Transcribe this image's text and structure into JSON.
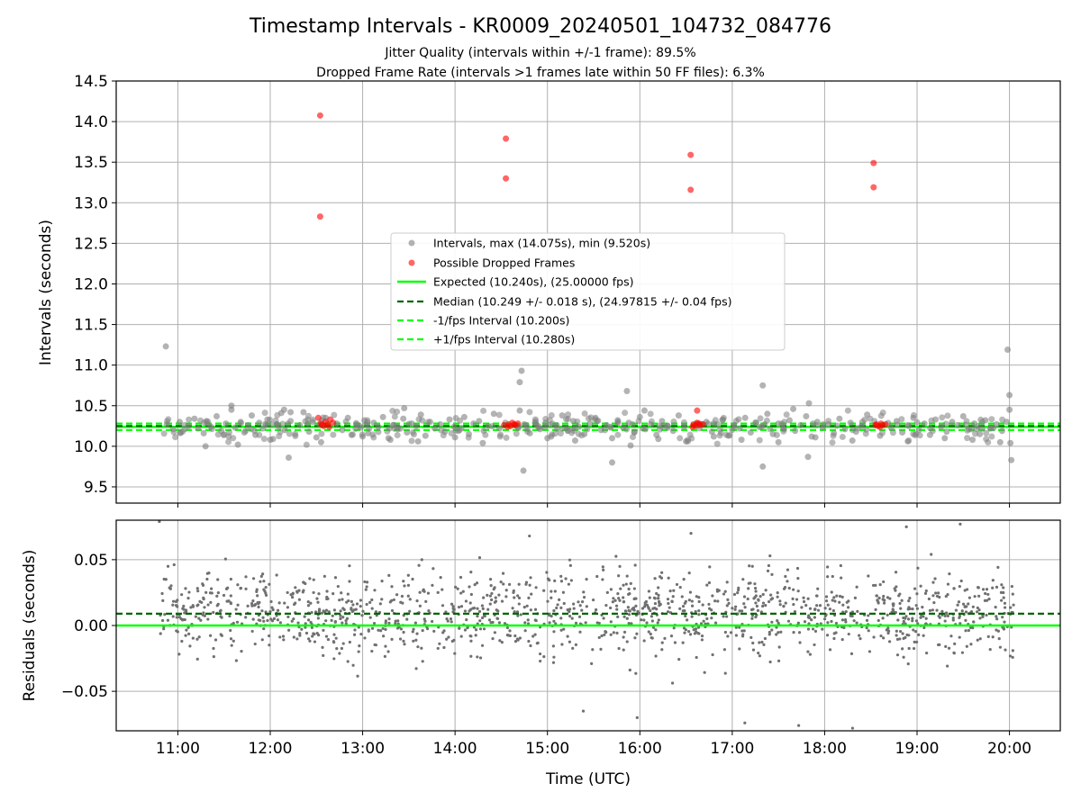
{
  "chart_data": [
    {
      "type": "scatter",
      "title": "Timestamp Intervals - KR0009_20240501_104732_084776",
      "subtitle_lines": [
        "Jitter Quality (intervals within +/-1 frame): 89.5%",
        "Dropped Frame Rate (intervals >1 frames late within 50 FF files): 6.3%"
      ],
      "ylabel": "Intervals (seconds)",
      "xlim": [
        10.333,
        20.55
      ],
      "ylim": [
        9.3,
        14.5
      ],
      "y_ticks": [
        9.5,
        10.0,
        10.5,
        11.0,
        11.5,
        12.0,
        12.5,
        13.0,
        13.5,
        14.0,
        14.5
      ],
      "y_tick_labels": [
        "9.5",
        "10.0",
        "10.5",
        "11.0",
        "11.5",
        "12.0",
        "12.5",
        "13.0",
        "13.5",
        "14.0",
        "14.5"
      ],
      "grid": true,
      "legend_placement": "center",
      "reference_lines": {
        "expected": 10.24,
        "median": 10.249,
        "minus_interval": 10.2,
        "plus_interval": 10.28
      },
      "series": [
        {
          "name": "Intervals, max (14.075s), min (9.520s)",
          "color": "#808080",
          "marker": "circle",
          "x_hours_utc": [
            10.88,
            10.95,
            11.02,
            11.05,
            11.12,
            11.18,
            11.22,
            11.28,
            11.31,
            11.36,
            11.42,
            11.47,
            11.52,
            11.55,
            11.58,
            11.62,
            11.68,
            11.72,
            11.76,
            11.8,
            11.84,
            11.88,
            11.92,
            11.97,
            12.03,
            12.07,
            12.12,
            12.16,
            12.22,
            12.27,
            12.32,
            12.36,
            12.42,
            12.46,
            12.5,
            12.72,
            12.78,
            12.84,
            12.88,
            12.93,
            12.98,
            13.02,
            13.06,
            13.12,
            13.17,
            13.22,
            13.28,
            13.33,
            13.38,
            13.44,
            13.48,
            13.53,
            13.58,
            13.63,
            13.68,
            13.73,
            13.78,
            13.84,
            13.89,
            13.94,
            13.99,
            14.05,
            14.1,
            14.15,
            14.2,
            14.26,
            14.31,
            14.36,
            14.42,
            14.48,
            14.75,
            14.81,
            14.87,
            14.92,
            14.98,
            15.04,
            15.1,
            15.16,
            15.22,
            15.28,
            15.34,
            15.4,
            15.46,
            15.52,
            15.58,
            15.64,
            15.7,
            15.76,
            15.82,
            15.88,
            15.94,
            16.0,
            16.06,
            16.12,
            16.18,
            16.24,
            16.3,
            16.36,
            16.42,
            16.48,
            16.72,
            16.78,
            16.84,
            16.9,
            16.96,
            17.02,
            17.08,
            17.14,
            17.2,
            17.26,
            17.32,
            17.38,
            17.44,
            17.5,
            17.56,
            17.62,
            17.68,
            17.74,
            17.8,
            17.86,
            17.92,
            17.98,
            18.04,
            18.1,
            18.16,
            18.22,
            18.28,
            18.34,
            18.4,
            18.46,
            18.72,
            18.78,
            18.84,
            18.9,
            18.96,
            19.02,
            19.08,
            19.14,
            19.2,
            19.26,
            19.32,
            19.38,
            19.44,
            19.5,
            19.56,
            19.62,
            19.68,
            19.74,
            19.8,
            19.86,
            19.92,
            19.97,
            10.87,
            11.58,
            12.22,
            12.6,
            14.72,
            14.7,
            14.7,
            14.74,
            15.86,
            15.9,
            17.33,
            17.33,
            17.83,
            17.82,
            19.98,
            20.0,
            20.0,
            20.01,
            20.02,
            11.3,
            11.65,
            12.0,
            12.2,
            12.55,
            13.0,
            13.3,
            13.6,
            14.0,
            14.3,
            15.0,
            15.3,
            15.7,
            16.2,
            16.5,
            16.8,
            17.1,
            17.5,
            17.9,
            18.3,
            18.6,
            18.9,
            19.3,
            19.6,
            19.9,
            12.15,
            13.45,
            16.05,
            17.66
          ],
          "y_intervals_s": [
            10.27,
            10.21,
            10.3,
            10.18,
            10.25,
            10.34,
            10.22,
            10.16,
            10.31,
            10.24,
            10.37,
            10.19,
            10.28,
            10.12,
            10.45,
            10.23,
            10.3,
            10.17,
            10.26,
            10.38,
            10.14,
            10.29,
            10.22,
            10.33,
            10.09,
            10.27,
            10.41,
            10.2,
            10.31,
            10.15,
            10.26,
            10.42,
            10.18,
            10.3,
            10.11,
            10.28,
            10.2,
            10.35,
            10.14,
            10.27,
            10.23,
            10.32,
            10.16,
            10.29,
            10.24,
            10.36,
            10.1,
            10.26,
            10.21,
            10.34,
            10.17,
            10.28,
            10.25,
            10.39,
            10.13,
            10.3,
            10.22,
            10.27,
            10.18,
            10.33,
            10.24,
            10.2,
            10.36,
            10.15,
            10.28,
            10.31,
            10.19,
            10.25,
            10.4,
            10.22,
            10.27,
            10.16,
            10.33,
            10.21,
            10.29,
            10.12,
            10.26,
            10.38,
            10.19,
            10.31,
            10.24,
            10.15,
            10.28,
            10.35,
            10.2,
            10.26,
            10.1,
            10.32,
            10.23,
            10.29,
            10.17,
            10.36,
            10.21,
            10.27,
            10.14,
            10.31,
            10.25,
            10.19,
            10.38,
            10.24,
            10.3,
            10.18,
            10.27,
            10.33,
            10.13,
            10.26,
            10.22,
            10.35,
            10.17,
            10.29,
            10.24,
            10.4,
            10.15,
            10.28,
            10.21,
            10.32,
            10.19,
            10.26,
            10.37,
            10.12,
            10.3,
            10.23,
            10.27,
            10.16,
            10.34,
            10.21,
            10.29,
            10.18,
            10.25,
            10.39,
            10.23,
            10.31,
            10.17,
            10.26,
            10.35,
            10.2,
            10.28,
            10.14,
            10.33,
            10.24,
            10.18,
            10.3,
            10.26,
            10.37,
            10.21,
            10.28,
            10.15,
            10.32,
            10.23,
            10.27,
            10.19,
            10.3,
            11.23,
            10.5,
            10.42,
            10.35,
            10.93,
            10.79,
            10.44,
            9.7,
            10.68,
            10.01,
            10.75,
            9.75,
            10.53,
            9.87,
            11.19,
            10.63,
            10.45,
            10.04,
            9.83,
            10.0,
            10.02,
            10.08,
            9.86,
            10.05,
            10.12,
            10.08,
            10.06,
            10.11,
            10.04,
            10.1,
            10.07,
            9.8,
            10.09,
            10.06,
            10.12,
            10.08,
            10.05,
            10.11,
            10.07,
            10.13,
            10.06,
            10.1,
            10.08,
            10.05,
            10.45,
            10.47,
            10.44,
            10.46
          ]
        },
        {
          "name": "Possible Dropped Frames",
          "color": "#ff0000",
          "marker": "circle",
          "x_hours_utc": [
            12.54,
            12.54,
            12.55,
            12.58,
            12.6,
            12.62,
            12.65,
            12.68,
            12.56,
            12.64,
            12.52,
            14.55,
            14.55,
            14.58,
            14.6,
            14.62,
            14.65,
            14.68,
            14.57,
            14.64,
            14.53,
            16.55,
            16.55,
            16.58,
            16.6,
            16.62,
            16.65,
            16.68,
            16.62,
            16.57,
            16.64,
            18.53,
            18.53,
            18.56,
            18.58,
            18.61,
            18.63,
            18.66,
            18.6,
            18.55
          ],
          "y_intervals_s": [
            14.075,
            12.83,
            10.28,
            10.25,
            10.3,
            10.27,
            10.33,
            10.29,
            10.26,
            10.24,
            10.35,
            13.79,
            13.3,
            10.27,
            10.25,
            10.29,
            10.26,
            10.28,
            10.24,
            10.27,
            10.26,
            13.59,
            13.16,
            10.27,
            10.25,
            10.29,
            10.26,
            10.27,
            10.44,
            10.24,
            10.28,
            13.49,
            13.19,
            10.27,
            10.25,
            10.28,
            10.26,
            10.27,
            10.24,
            10.26
          ]
        },
        {
          "name": "Expected (10.240s), (25.00000 fps)",
          "color": "#00ff00",
          "line_style": "solid",
          "y": 10.24
        },
        {
          "name": "Median (10.249 +/- 0.018 s), (24.97815 +/- 0.04 fps)",
          "color": "#006400",
          "line_style": "dashed",
          "y": 10.249
        },
        {
          "name": "-1/fps Interval (10.200s)",
          "color": "#00ff00",
          "line_style": "dashed",
          "y": 10.2
        },
        {
          "name": "+1/fps Interval (10.280s)",
          "color": "#00ff00",
          "line_style": "dashed",
          "y": 10.28
        }
      ]
    },
    {
      "type": "scatter",
      "ylabel": "Residuals (seconds)",
      "xlabel": "Time (UTC)",
      "xlim": [
        10.333,
        20.55
      ],
      "ylim": [
        -0.08,
        0.08
      ],
      "y_ticks": [
        -0.05,
        0.0,
        0.05
      ],
      "y_tick_labels": [
        "−0.05",
        "0.00",
        "0.05"
      ],
      "x_ticks": [
        11,
        12,
        13,
        14,
        15,
        16,
        17,
        18,
        19,
        20
      ],
      "x_tick_labels": [
        "11:00",
        "12:00",
        "13:00",
        "14:00",
        "15:00",
        "16:00",
        "17:00",
        "18:00",
        "19:00",
        "20:00"
      ],
      "grid": true,
      "reference_lines": {
        "zero": 0.0,
        "median_offset": 0.009
      },
      "series": [
        {
          "name": "Residuals",
          "color": "#707070",
          "point_count": 1400,
          "x_range_hours_utc": [
            10.8,
            20.05
          ],
          "center_s": 0.009,
          "spread_s": 0.018,
          "note_outliers_y_s": [
            0.079,
            0.077,
            0.075,
            -0.078,
            -0.076,
            -0.074,
            0.07,
            -0.07,
            -0.065,
            0.068
          ]
        }
      ]
    }
  ]
}
